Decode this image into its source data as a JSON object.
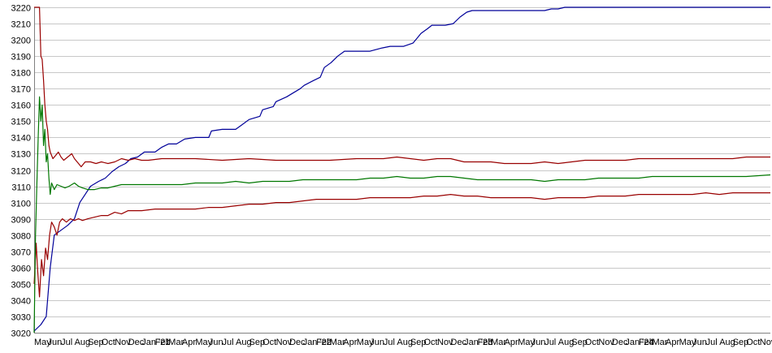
{
  "chart_data": {
    "type": "line",
    "title": "",
    "xlabel": "",
    "ylabel": "",
    "ylim": [
      3020,
      3220
    ],
    "y_ticks": [
      3020,
      3030,
      3040,
      3050,
      3060,
      3070,
      3080,
      3090,
      3100,
      3110,
      3120,
      3130,
      3140,
      3150,
      3160,
      3170,
      3180,
      3190,
      3200,
      3210,
      3220
    ],
    "grid": "horizontal",
    "legend": "none",
    "x_tick_labels": [
      "May",
      "Jun",
      "Jul",
      "Aug",
      "Sep",
      "Oct",
      "Nov",
      "Dec",
      "Jan '21",
      "Feb",
      "Mar",
      "Apr",
      "May",
      "Jun",
      "Jul",
      "Aug",
      "Sep",
      "Oct",
      "Nov",
      "Dec",
      "Jan '22",
      "Feb",
      "Mar",
      "Apr",
      "May",
      "Jun",
      "Jul",
      "Aug",
      "Sep",
      "Oct",
      "Nov",
      "Dec",
      "Jan '23",
      "Feb",
      "Mar",
      "Apr",
      "May",
      "Jun",
      "Jul",
      "Aug",
      "Sep",
      "Oct",
      "Nov",
      "Dec",
      "Jan '24",
      "Feb",
      "Mar",
      "Apr",
      "May",
      "Jun",
      "Jul",
      "Aug",
      "Sep",
      "Oct",
      "Nov"
    ],
    "x_month_index_range": [
      0,
      54.8
    ],
    "series": [
      {
        "color": "#000099",
        "points": [
          [
            0,
            3021
          ],
          [
            0.5,
            3025
          ],
          [
            0.9,
            3030
          ],
          [
            1.2,
            3060
          ],
          [
            1.5,
            3080
          ],
          [
            2,
            3083
          ],
          [
            2.5,
            3086
          ],
          [
            3,
            3090
          ],
          [
            3.4,
            3100
          ],
          [
            3.8,
            3105
          ],
          [
            4.2,
            3110
          ],
          [
            4.8,
            3113
          ],
          [
            5.3,
            3115
          ],
          [
            5.8,
            3119
          ],
          [
            6.3,
            3122
          ],
          [
            6.8,
            3124
          ],
          [
            7.2,
            3127
          ],
          [
            7.7,
            3128
          ],
          [
            8.2,
            3131
          ],
          [
            9,
            3131
          ],
          [
            9.5,
            3134
          ],
          [
            10,
            3136
          ],
          [
            10.6,
            3136
          ],
          [
            11.2,
            3139
          ],
          [
            12,
            3140
          ],
          [
            13,
            3140
          ],
          [
            13.2,
            3144
          ],
          [
            14,
            3145
          ],
          [
            15,
            3145
          ],
          [
            15.5,
            3148
          ],
          [
            16,
            3151
          ],
          [
            16.8,
            3153
          ],
          [
            17,
            3157
          ],
          [
            17.8,
            3159
          ],
          [
            18,
            3162
          ],
          [
            18.8,
            3165
          ],
          [
            19.2,
            3167
          ],
          [
            19.8,
            3170
          ],
          [
            20.1,
            3172
          ],
          [
            20.8,
            3175
          ],
          [
            21.3,
            3177
          ],
          [
            21.6,
            3183
          ],
          [
            22.1,
            3186
          ],
          [
            22.6,
            3190
          ],
          [
            23.1,
            3193
          ],
          [
            24,
            3193
          ],
          [
            25,
            3193
          ],
          [
            25.9,
            3195
          ],
          [
            26.5,
            3196
          ],
          [
            27.5,
            3196
          ],
          [
            28.2,
            3198
          ],
          [
            28.5,
            3201
          ],
          [
            28.8,
            3204
          ],
          [
            29.3,
            3207
          ],
          [
            29.6,
            3209
          ],
          [
            30.6,
            3209
          ],
          [
            31.2,
            3210
          ],
          [
            31.7,
            3214
          ],
          [
            32.2,
            3217
          ],
          [
            32.6,
            3218
          ],
          [
            34,
            3218
          ],
          [
            36,
            3218
          ],
          [
            38,
            3218
          ],
          [
            38.5,
            3219
          ],
          [
            39,
            3219
          ],
          [
            39.5,
            3220
          ],
          [
            42,
            3220
          ],
          [
            45,
            3220
          ],
          [
            48,
            3220
          ],
          [
            51,
            3220
          ],
          [
            54.8,
            3220
          ]
        ]
      },
      {
        "color": "#990000",
        "points": [
          [
            0,
            3220
          ],
          [
            0.4,
            3220
          ],
          [
            0.5,
            3190
          ],
          [
            0.6,
            3188
          ],
          [
            0.7,
            3175
          ],
          [
            0.8,
            3160
          ],
          [
            0.9,
            3150
          ],
          [
            1.0,
            3145
          ],
          [
            1.1,
            3135
          ],
          [
            1.2,
            3131
          ],
          [
            1.4,
            3127
          ],
          [
            1.6,
            3129
          ],
          [
            1.8,
            3131
          ],
          [
            2,
            3128
          ],
          [
            2.2,
            3126
          ],
          [
            2.5,
            3128
          ],
          [
            2.8,
            3130
          ],
          [
            3,
            3127
          ],
          [
            3.3,
            3124
          ],
          [
            3.5,
            3122
          ],
          [
            3.8,
            3125
          ],
          [
            4.2,
            3125
          ],
          [
            4.6,
            3124
          ],
          [
            5,
            3125
          ],
          [
            5.5,
            3124
          ],
          [
            6,
            3125
          ],
          [
            6.5,
            3127
          ],
          [
            7,
            3126
          ],
          [
            7.5,
            3127
          ],
          [
            8,
            3126
          ],
          [
            8.5,
            3126
          ],
          [
            9.5,
            3127
          ],
          [
            10.5,
            3127
          ],
          [
            12,
            3127
          ],
          [
            14,
            3126
          ],
          [
            16,
            3127
          ],
          [
            18,
            3126
          ],
          [
            20,
            3126
          ],
          [
            22,
            3126
          ],
          [
            24,
            3127
          ],
          [
            26,
            3127
          ],
          [
            27,
            3128
          ],
          [
            28,
            3127
          ],
          [
            29,
            3126
          ],
          [
            30,
            3127
          ],
          [
            31,
            3127
          ],
          [
            32,
            3125
          ],
          [
            33,
            3125
          ],
          [
            34,
            3125
          ],
          [
            35,
            3124
          ],
          [
            36,
            3124
          ],
          [
            37,
            3124
          ],
          [
            38,
            3125
          ],
          [
            39,
            3124
          ],
          [
            40,
            3125
          ],
          [
            41,
            3126
          ],
          [
            42,
            3126
          ],
          [
            43,
            3126
          ],
          [
            44,
            3126
          ],
          [
            45,
            3127
          ],
          [
            46,
            3127
          ],
          [
            47,
            3127
          ],
          [
            48,
            3127
          ],
          [
            49,
            3127
          ],
          [
            50,
            3127
          ],
          [
            51,
            3127
          ],
          [
            52,
            3127
          ],
          [
            53,
            3128
          ],
          [
            54.8,
            3128
          ]
        ]
      },
      {
        "color": "#990000",
        "points": [
          [
            0,
            3050
          ],
          [
            0.15,
            3075
          ],
          [
            0.25,
            3060
          ],
          [
            0.4,
            3042
          ],
          [
            0.55,
            3065
          ],
          [
            0.7,
            3055
          ],
          [
            0.85,
            3072
          ],
          [
            1.0,
            3065
          ],
          [
            1.15,
            3080
          ],
          [
            1.3,
            3088
          ],
          [
            1.5,
            3085
          ],
          [
            1.7,
            3080
          ],
          [
            1.9,
            3088
          ],
          [
            2.1,
            3090
          ],
          [
            2.4,
            3088
          ],
          [
            2.7,
            3090
          ],
          [
            3,
            3089
          ],
          [
            3.3,
            3090
          ],
          [
            3.6,
            3089
          ],
          [
            4,
            3090
          ],
          [
            4.5,
            3091
          ],
          [
            5,
            3092
          ],
          [
            5.5,
            3092
          ],
          [
            6,
            3094
          ],
          [
            6.5,
            3093
          ],
          [
            7,
            3095
          ],
          [
            7.5,
            3095
          ],
          [
            8,
            3095
          ],
          [
            9,
            3096
          ],
          [
            10,
            3096
          ],
          [
            11,
            3096
          ],
          [
            12,
            3096
          ],
          [
            13,
            3097
          ],
          [
            14,
            3097
          ],
          [
            15,
            3098
          ],
          [
            16,
            3099
          ],
          [
            17,
            3099
          ],
          [
            18,
            3100
          ],
          [
            19,
            3100
          ],
          [
            20,
            3101
          ],
          [
            21,
            3102
          ],
          [
            22,
            3102
          ],
          [
            23,
            3102
          ],
          [
            24,
            3102
          ],
          [
            25,
            3103
          ],
          [
            26,
            3103
          ],
          [
            27,
            3103
          ],
          [
            28,
            3103
          ],
          [
            29,
            3104
          ],
          [
            30,
            3104
          ],
          [
            31,
            3105
          ],
          [
            32,
            3104
          ],
          [
            33,
            3104
          ],
          [
            34,
            3103
          ],
          [
            35,
            3103
          ],
          [
            36,
            3103
          ],
          [
            37,
            3103
          ],
          [
            38,
            3102
          ],
          [
            39,
            3103
          ],
          [
            40,
            3103
          ],
          [
            41,
            3103
          ],
          [
            42,
            3104
          ],
          [
            43,
            3104
          ],
          [
            44,
            3104
          ],
          [
            45,
            3105
          ],
          [
            46,
            3105
          ],
          [
            47,
            3105
          ],
          [
            48,
            3105
          ],
          [
            49,
            3105
          ],
          [
            50,
            3106
          ],
          [
            51,
            3105
          ],
          [
            52,
            3106
          ],
          [
            53,
            3106
          ],
          [
            54.8,
            3106
          ]
        ]
      },
      {
        "color": "#007700",
        "points": [
          [
            0,
            3020
          ],
          [
            0.1,
            3080
          ],
          [
            0.2,
            3110
          ],
          [
            0.3,
            3140
          ],
          [
            0.4,
            3165
          ],
          [
            0.5,
            3150
          ],
          [
            0.6,
            3160
          ],
          [
            0.7,
            3135
          ],
          [
            0.8,
            3145
          ],
          [
            0.9,
            3125
          ],
          [
            1.0,
            3130
          ],
          [
            1.1,
            3115
          ],
          [
            1.2,
            3105
          ],
          [
            1.3,
            3112
          ],
          [
            1.5,
            3108
          ],
          [
            1.7,
            3111
          ],
          [
            2,
            3110
          ],
          [
            2.3,
            3109
          ],
          [
            2.6,
            3110
          ],
          [
            3,
            3112
          ],
          [
            3.3,
            3110
          ],
          [
            3.6,
            3109
          ],
          [
            4,
            3108
          ],
          [
            4.5,
            3108
          ],
          [
            5,
            3109
          ],
          [
            5.5,
            3109
          ],
          [
            6,
            3110
          ],
          [
            6.5,
            3111
          ],
          [
            7,
            3111
          ],
          [
            7.5,
            3111
          ],
          [
            8,
            3111
          ],
          [
            9,
            3111
          ],
          [
            10,
            3111
          ],
          [
            11,
            3111
          ],
          [
            12,
            3112
          ],
          [
            13,
            3112
          ],
          [
            14,
            3112
          ],
          [
            15,
            3113
          ],
          [
            16,
            3112
          ],
          [
            17,
            3113
          ],
          [
            18,
            3113
          ],
          [
            19,
            3113
          ],
          [
            20,
            3114
          ],
          [
            21,
            3114
          ],
          [
            22,
            3114
          ],
          [
            23,
            3114
          ],
          [
            24,
            3114
          ],
          [
            25,
            3115
          ],
          [
            26,
            3115
          ],
          [
            27,
            3116
          ],
          [
            28,
            3115
          ],
          [
            29,
            3115
          ],
          [
            30,
            3116
          ],
          [
            31,
            3116
          ],
          [
            32,
            3115
          ],
          [
            33,
            3114
          ],
          [
            34,
            3114
          ],
          [
            35,
            3114
          ],
          [
            36,
            3114
          ],
          [
            37,
            3114
          ],
          [
            38,
            3113
          ],
          [
            39,
            3114
          ],
          [
            40,
            3114
          ],
          [
            41,
            3114
          ],
          [
            42,
            3115
          ],
          [
            43,
            3115
          ],
          [
            44,
            3115
          ],
          [
            45,
            3115
          ],
          [
            46,
            3116
          ],
          [
            47,
            3116
          ],
          [
            48,
            3116
          ],
          [
            49,
            3116
          ],
          [
            50,
            3116
          ],
          [
            51,
            3116
          ],
          [
            52,
            3116
          ],
          [
            53,
            3116
          ],
          [
            54.8,
            3117
          ]
        ]
      }
    ]
  }
}
